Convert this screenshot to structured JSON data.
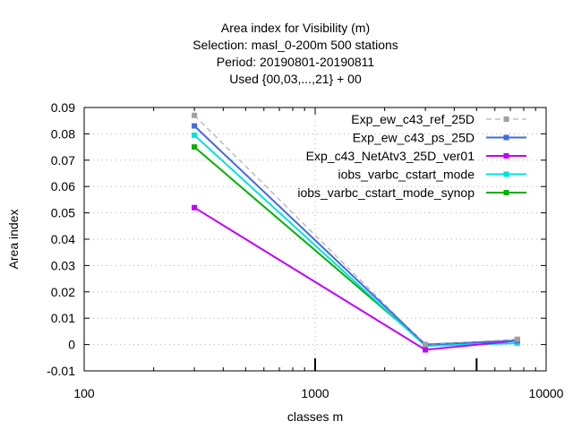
{
  "chart_data": {
    "type": "line",
    "title_lines": [
      "Area index  for Visibility (m)",
      "Selection: masl_0-200m    500 stations",
      "Period: 20190801-20190811",
      "Used {00,03,...,21} + 00"
    ],
    "xlabel": "classes m",
    "ylabel": "Area index",
    "x_scale": "log",
    "xlim": [
      100,
      10000
    ],
    "ylim": [
      -0.01,
      0.09
    ],
    "x_ticks": [
      100,
      1000,
      10000
    ],
    "x_tick_labels": [
      "100",
      "1000",
      "10000"
    ],
    "y_ticks": [
      -0.01,
      0,
      0.01,
      0.02,
      0.03,
      0.04,
      0.05,
      0.06,
      0.07,
      0.08,
      0.09
    ],
    "y_tick_labels": [
      "-0.01",
      "0",
      "0.01",
      "0.02",
      "0.03",
      "0.04",
      "0.05",
      "0.06",
      "0.07",
      "0.08",
      "0.09"
    ],
    "extra_x_marks": [
      1000,
      5000
    ],
    "grid": true,
    "legend_position": "top-right",
    "x": [
      300,
      3000,
      7500
    ],
    "series": [
      {
        "name": "Exp_ew_c43_ref_25D",
        "values": [
          0.087,
          0.0,
          0.002
        ],
        "color": "#a0a0a0",
        "dashed": true
      },
      {
        "name": "Exp_ew_c43_ps_25D",
        "values": [
          0.083,
          0.0,
          0.0015
        ],
        "color": "#4169e1",
        "dashed": false
      },
      {
        "name": "Exp_c43_NetAtv3_25D_ver01",
        "values": [
          0.052,
          -0.002,
          0.0015
        ],
        "color": "#c000ff",
        "dashed": false
      },
      {
        "name": "iobs_varbc_cstart_mode",
        "values": [
          0.0795,
          -0.0005,
          0.0005
        ],
        "color": "#00e0e0",
        "dashed": false
      },
      {
        "name": "iobs_varbc_cstart_mode_synop",
        "values": [
          0.075,
          0.0,
          0.0015
        ],
        "color": "#00b000",
        "dashed": false
      }
    ]
  }
}
